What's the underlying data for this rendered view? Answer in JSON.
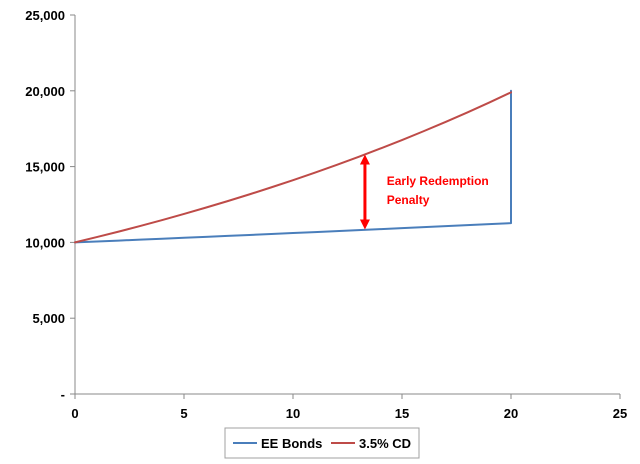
{
  "chart_data": {
    "type": "line",
    "title": "",
    "xlabel": "",
    "ylabel": "",
    "xlim": [
      0,
      25
    ],
    "ylim": [
      0,
      25000
    ],
    "x_ticks": [
      0,
      5,
      10,
      15,
      20,
      25
    ],
    "x_tick_labels": [
      "0",
      "5",
      "10",
      "15",
      "20",
      "25"
    ],
    "y_ticks": [
      0,
      5000,
      10000,
      15000,
      20000,
      25000
    ],
    "y_tick_labels": [
      "-",
      "5,000",
      "10,000",
      "15,000",
      "20,000",
      "25,000"
    ],
    "grid": false,
    "legend_position": "bottom",
    "series": [
      {
        "name": "EE Bonds",
        "color": "#4a7ebb",
        "x": [
          0,
          1,
          2,
          3,
          4,
          5,
          6,
          7,
          8,
          9,
          10,
          11,
          12,
          13,
          14,
          15,
          16,
          17,
          18,
          19,
          20,
          20
        ],
        "y": [
          10000,
          10060,
          10121,
          10182,
          10243,
          10304,
          10366,
          10428,
          10491,
          10554,
          10617,
          10681,
          10745,
          10809,
          10874,
          10939,
          11005,
          11071,
          11138,
          11204,
          11272,
          20000
        ]
      },
      {
        "name": "3.5% CD",
        "color": "#be4b48",
        "x": [
          0,
          1,
          2,
          3,
          4,
          5,
          6,
          7,
          8,
          9,
          10,
          11,
          12,
          13,
          14,
          15,
          16,
          17,
          18,
          19,
          20
        ],
        "y": [
          10000,
          10350,
          10712,
          11087,
          11475,
          11877,
          12293,
          12723,
          13168,
          13629,
          14106,
          14600,
          15111,
          15640,
          16187,
          16753,
          17340,
          17947,
          18575,
          19225,
          19898
        ]
      }
    ],
    "annotations": [
      {
        "text_lines": [
          "Early Redemption",
          "Penalty"
        ],
        "color": "#ff0000",
        "arrow_x": 13.3,
        "arrow_y_top": 15800,
        "arrow_y_bottom": 10850,
        "text_x": 14.3,
        "text_y": 13800
      }
    ]
  }
}
